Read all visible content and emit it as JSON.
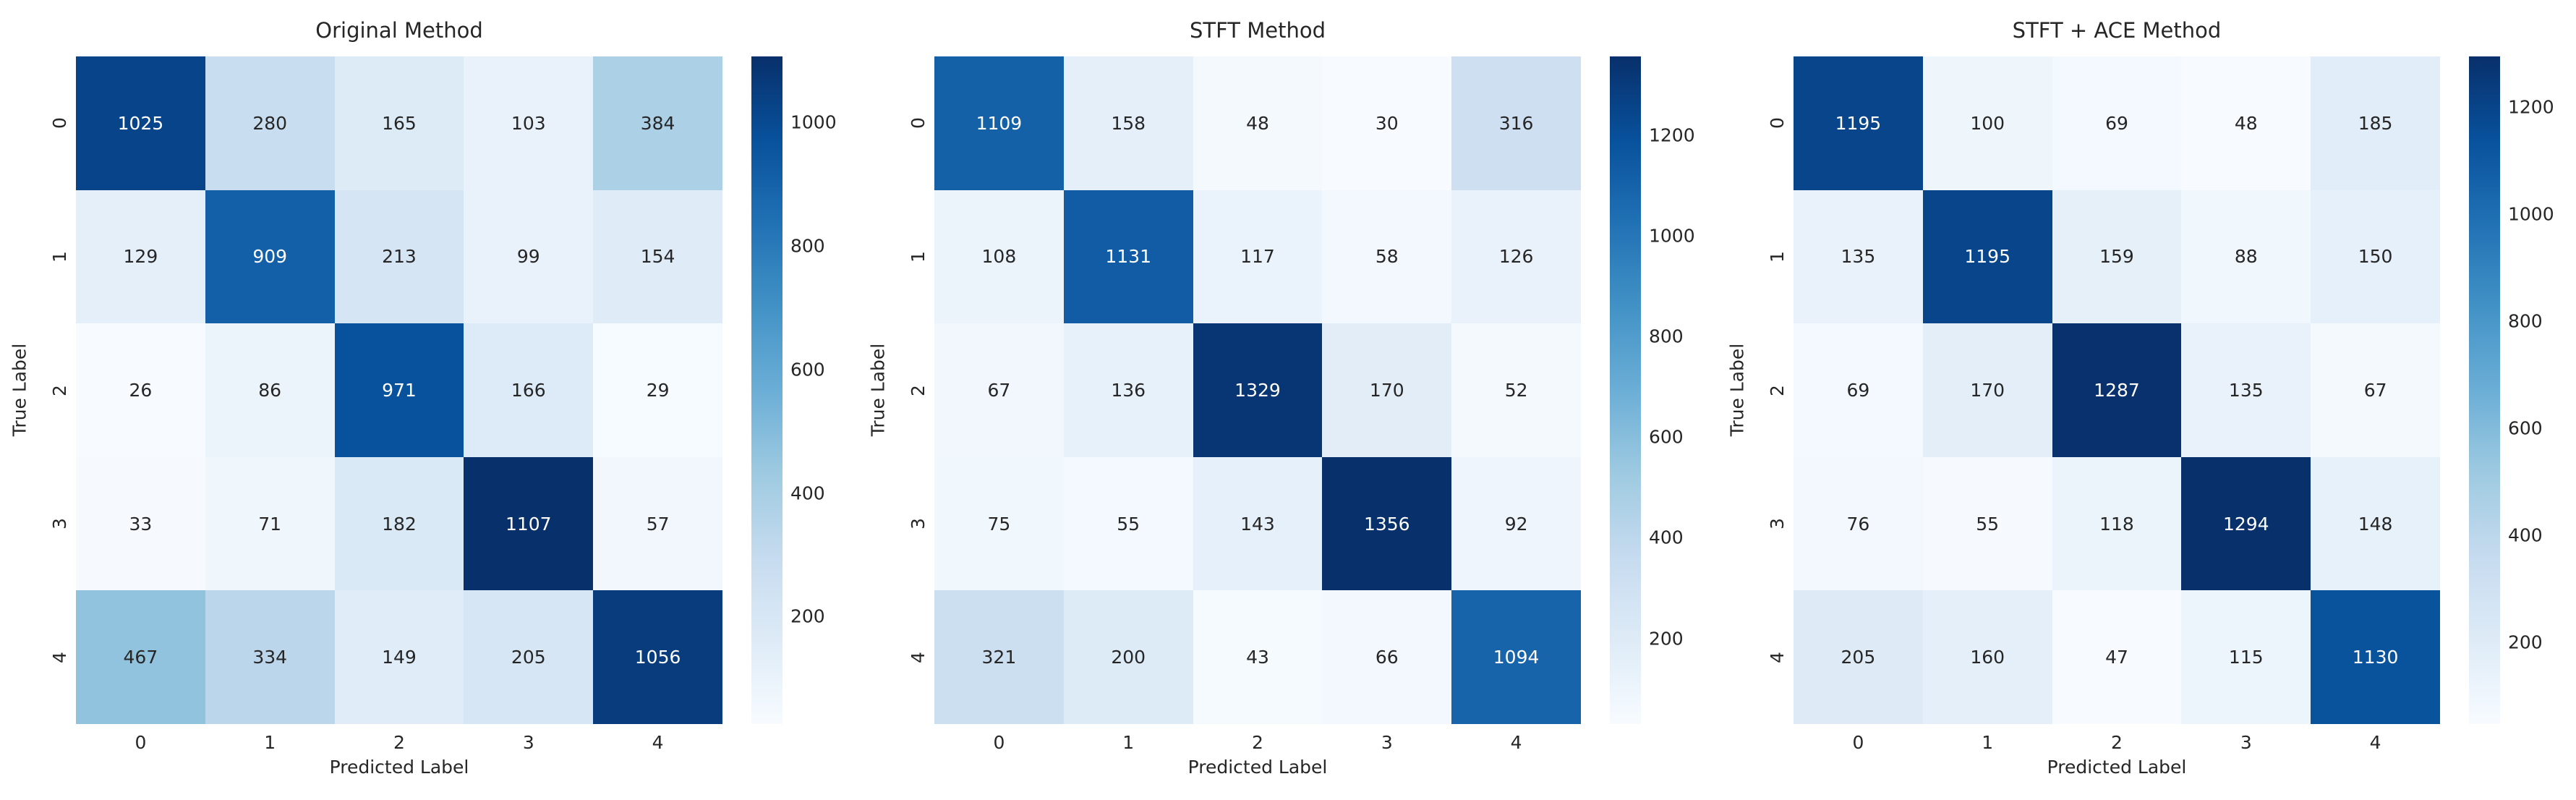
{
  "figure": {
    "background_color": "#ffffff",
    "text_color": "#262626",
    "annotation_light_text_color": "#ffffff",
    "colormap": "Blues",
    "colormap_stops": [
      "#f7fbff",
      "#deebf7",
      "#c6dbef",
      "#9ecae1",
      "#6baed6",
      "#4292c6",
      "#2171b5",
      "#08519c",
      "#08306b"
    ]
  },
  "chart_data": [
    {
      "type": "heatmap",
      "title": "Original Method",
      "xlabel": "Predicted Label",
      "ylabel": "True Label",
      "x_tick_labels": [
        "0",
        "1",
        "2",
        "3",
        "4"
      ],
      "y_tick_labels": [
        "0",
        "1",
        "2",
        "3",
        "4"
      ],
      "matrix": [
        [
          1025,
          280,
          165,
          103,
          384
        ],
        [
          129,
          909,
          213,
          99,
          154
        ],
        [
          26,
          86,
          971,
          166,
          29
        ],
        [
          33,
          71,
          182,
          1107,
          57
        ],
        [
          467,
          334,
          149,
          205,
          1056
        ]
      ],
      "colorbar_ticks": [
        200,
        400,
        600,
        800,
        1000
      ],
      "legend_position": "right-colorbar",
      "grid_lines": false
    },
    {
      "type": "heatmap",
      "title": "STFT Method",
      "xlabel": "Predicted Label",
      "ylabel": "True Label",
      "x_tick_labels": [
        "0",
        "1",
        "2",
        "3",
        "4"
      ],
      "y_tick_labels": [
        "0",
        "1",
        "2",
        "3",
        "4"
      ],
      "matrix": [
        [
          1109,
          158,
          48,
          30,
          316
        ],
        [
          108,
          1131,
          117,
          58,
          126
        ],
        [
          67,
          136,
          1329,
          170,
          52
        ],
        [
          75,
          55,
          143,
          1356,
          92
        ],
        [
          321,
          200,
          43,
          66,
          1094
        ]
      ],
      "colorbar_ticks": [
        200,
        400,
        600,
        800,
        1000,
        1200
      ],
      "legend_position": "right-colorbar",
      "grid_lines": false
    },
    {
      "type": "heatmap",
      "title": "STFT + ACE Method",
      "xlabel": "Predicted Label",
      "ylabel": "True Label",
      "x_tick_labels": [
        "0",
        "1",
        "2",
        "3",
        "4"
      ],
      "y_tick_labels": [
        "0",
        "1",
        "2",
        "3",
        "4"
      ],
      "matrix": [
        [
          1195,
          100,
          69,
          48,
          185
        ],
        [
          135,
          1195,
          159,
          88,
          150
        ],
        [
          69,
          170,
          1287,
          135,
          67
        ],
        [
          76,
          55,
          118,
          1294,
          148
        ],
        [
          205,
          160,
          47,
          115,
          1130
        ]
      ],
      "colorbar_ticks": [
        200,
        400,
        600,
        800,
        1000,
        1200
      ],
      "legend_position": "right-colorbar",
      "grid_lines": false
    }
  ]
}
